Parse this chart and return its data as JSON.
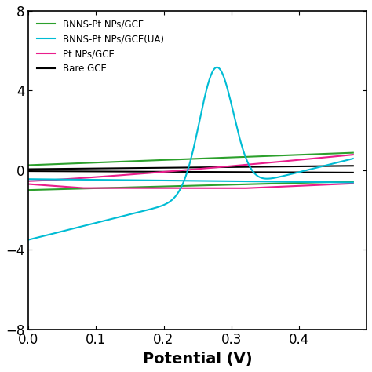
{
  "title": "",
  "xlabel": "Potential (V)",
  "ylabel": "",
  "xlim": [
    0.0,
    0.5
  ],
  "ylim": [
    -8,
    8
  ],
  "yticks": [
    -8,
    -4,
    0,
    4,
    8
  ],
  "xticks": [
    0.0,
    0.1,
    0.2,
    0.3,
    0.4
  ],
  "legend": [
    {
      "label": "BNNS-Pt NPs/GCE",
      "color": "#2ca02c"
    },
    {
      "label": "BNNS-Pt NPs/GCE(UA)",
      "color": "#00bcd4"
    },
    {
      "label": "Pt NPs/GCE",
      "color": "#e91e8c"
    },
    {
      "label": "Bare GCE",
      "color": "#000000"
    }
  ],
  "background_color": "#ffffff",
  "tick_labelsize": 12,
  "xlabel_fontsize": 14,
  "xlabel_fontweight": "bold",
  "linewidth": 1.5
}
